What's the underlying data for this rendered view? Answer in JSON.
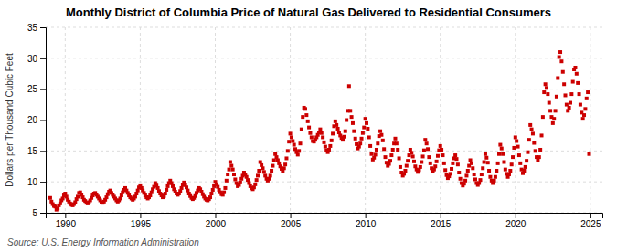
{
  "chart_data": {
    "type": "scatter",
    "title": "Monthly District of Columbia Price of Natural Gas Delivered to Residential Consumers",
    "y_label": "Dollars per Thousand Cubic Feet",
    "source": "Source: U.S. Energy Information Administration",
    "color": "#cc0000",
    "marker": "square",
    "grid": true,
    "xlim": [
      1988.7,
      2025.8
    ],
    "ylim": [
      5,
      35
    ],
    "xticks": [
      1990,
      1995,
      2000,
      2005,
      2010,
      2015,
      2020,
      2025
    ],
    "yticks": [
      5,
      10,
      15,
      20,
      25,
      30,
      35
    ],
    "x": [
      1989.0,
      1989.083,
      1989.167,
      1989.25,
      1989.333,
      1989.417,
      1989.5,
      1989.583,
      1989.667,
      1989.75,
      1989.833,
      1989.917,
      1990.0,
      1990.083,
      1990.167,
      1990.25,
      1990.333,
      1990.417,
      1990.5,
      1990.583,
      1990.667,
      1990.75,
      1990.833,
      1990.917,
      1991.0,
      1991.083,
      1991.167,
      1991.25,
      1991.333,
      1991.417,
      1991.5,
      1991.583,
      1991.667,
      1991.75,
      1991.833,
      1991.917,
      1992.0,
      1992.083,
      1992.167,
      1992.25,
      1992.333,
      1992.417,
      1992.5,
      1992.583,
      1992.667,
      1992.75,
      1992.833,
      1992.917,
      1993.0,
      1993.083,
      1993.167,
      1993.25,
      1993.333,
      1993.417,
      1993.5,
      1993.583,
      1993.667,
      1993.75,
      1993.833,
      1993.917,
      1994.0,
      1994.083,
      1994.167,
      1994.25,
      1994.333,
      1994.417,
      1994.5,
      1994.583,
      1994.667,
      1994.75,
      1994.833,
      1994.917,
      1995.0,
      1995.083,
      1995.167,
      1995.25,
      1995.333,
      1995.417,
      1995.5,
      1995.583,
      1995.667,
      1995.75,
      1995.833,
      1995.917,
      1996.0,
      1996.083,
      1996.167,
      1996.25,
      1996.333,
      1996.417,
      1996.5,
      1996.583,
      1996.667,
      1996.75,
      1996.833,
      1996.917,
      1997.0,
      1997.083,
      1997.167,
      1997.25,
      1997.333,
      1997.417,
      1997.5,
      1997.583,
      1997.667,
      1997.75,
      1997.833,
      1997.917,
      1998.0,
      1998.083,
      1998.167,
      1998.25,
      1998.333,
      1998.417,
      1998.5,
      1998.583,
      1998.667,
      1998.75,
      1998.833,
      1998.917,
      1999.0,
      1999.083,
      1999.167,
      1999.25,
      1999.333,
      1999.417,
      1999.5,
      1999.583,
      1999.667,
      1999.75,
      1999.833,
      1999.917,
      2000.0,
      2000.083,
      2000.167,
      2000.25,
      2000.333,
      2000.417,
      2000.5,
      2000.583,
      2000.667,
      2000.75,
      2000.833,
      2000.917,
      2001.0,
      2001.083,
      2001.167,
      2001.25,
      2001.333,
      2001.417,
      2001.5,
      2001.583,
      2001.667,
      2001.75,
      2001.833,
      2001.917,
      2002.0,
      2002.083,
      2002.167,
      2002.25,
      2002.333,
      2002.417,
      2002.5,
      2002.583,
      2002.667,
      2002.75,
      2002.833,
      2002.917,
      2003.0,
      2003.083,
      2003.167,
      2003.25,
      2003.333,
      2003.417,
      2003.5,
      2003.583,
      2003.667,
      2003.75,
      2003.833,
      2003.917,
      2004.0,
      2004.083,
      2004.167,
      2004.25,
      2004.333,
      2004.417,
      2004.5,
      2004.583,
      2004.667,
      2004.75,
      2004.833,
      2004.917,
      2005.0,
      2005.083,
      2005.167,
      2005.25,
      2005.333,
      2005.417,
      2005.5,
      2005.583,
      2005.667,
      2005.75,
      2005.833,
      2005.917,
      2006.0,
      2006.083,
      2006.167,
      2006.25,
      2006.333,
      2006.417,
      2006.5,
      2006.583,
      2006.667,
      2006.75,
      2006.833,
      2006.917,
      2007.0,
      2007.083,
      2007.167,
      2007.25,
      2007.333,
      2007.417,
      2007.5,
      2007.583,
      2007.667,
      2007.75,
      2007.833,
      2007.917,
      2008.0,
      2008.083,
      2008.167,
      2008.25,
      2008.333,
      2008.417,
      2008.5,
      2008.583,
      2008.667,
      2008.75,
      2008.833,
      2008.917,
      2009.0,
      2009.083,
      2009.167,
      2009.25,
      2009.333,
      2009.417,
      2009.5,
      2009.583,
      2009.667,
      2009.75,
      2009.833,
      2009.917,
      2010.0,
      2010.083,
      2010.167,
      2010.25,
      2010.333,
      2010.417,
      2010.5,
      2010.583,
      2010.667,
      2010.75,
      2010.833,
      2010.917,
      2011.0,
      2011.083,
      2011.167,
      2011.25,
      2011.333,
      2011.417,
      2011.5,
      2011.583,
      2011.667,
      2011.75,
      2011.833,
      2011.917,
      2012.0,
      2012.083,
      2012.167,
      2012.25,
      2012.333,
      2012.417,
      2012.5,
      2012.583,
      2012.667,
      2012.75,
      2012.833,
      2012.917,
      2013.0,
      2013.083,
      2013.167,
      2013.25,
      2013.333,
      2013.417,
      2013.5,
      2013.583,
      2013.667,
      2013.75,
      2013.833,
      2013.917,
      2014.0,
      2014.083,
      2014.167,
      2014.25,
      2014.333,
      2014.417,
      2014.5,
      2014.583,
      2014.667,
      2014.75,
      2014.833,
      2014.917,
      2015.0,
      2015.083,
      2015.167,
      2015.25,
      2015.333,
      2015.417,
      2015.5,
      2015.583,
      2015.667,
      2015.75,
      2015.833,
      2015.917,
      2016.0,
      2016.083,
      2016.167,
      2016.25,
      2016.333,
      2016.417,
      2016.5,
      2016.583,
      2016.667,
      2016.75,
      2016.833,
      2016.917,
      2017.0,
      2017.083,
      2017.167,
      2017.25,
      2017.333,
      2017.417,
      2017.5,
      2017.583,
      2017.667,
      2017.75,
      2017.833,
      2017.917,
      2018.0,
      2018.083,
      2018.167,
      2018.25,
      2018.333,
      2018.417,
      2018.5,
      2018.583,
      2018.667,
      2018.75,
      2018.833,
      2018.917,
      2019.0,
      2019.083,
      2019.167,
      2019.25,
      2019.333,
      2019.417,
      2019.5,
      2019.583,
      2019.667,
      2019.75,
      2019.833,
      2019.917,
      2020.0,
      2020.083,
      2020.167,
      2020.25,
      2020.333,
      2020.417,
      2020.5,
      2020.583,
      2020.667,
      2020.75,
      2020.833,
      2020.917,
      2021.0,
      2021.083,
      2021.167,
      2021.25,
      2021.333,
      2021.417,
      2021.5,
      2021.583,
      2021.667,
      2021.75,
      2021.833,
      2021.917,
      2022.0,
      2022.083,
      2022.167,
      2022.25,
      2022.333,
      2022.417,
      2022.5,
      2022.583,
      2022.667,
      2022.75,
      2022.833,
      2022.917,
      2023.0,
      2023.083,
      2023.167,
      2023.25,
      2023.333,
      2023.417,
      2023.5,
      2023.583,
      2023.667,
      2023.75,
      2023.833,
      2023.917,
      2024.0,
      2024.083,
      2024.167,
      2024.25,
      2024.333,
      2024.417,
      2024.5,
      2024.583,
      2024.667,
      2024.75,
      2024.833,
      2024.917
    ],
    "values": [
      7.4,
      6.8,
      6.4,
      6.1,
      6.0,
      5.5,
      5.7,
      6.2,
      6.5,
      7.0,
      7.3,
      7.8,
      8.1,
      7.6,
      7.1,
      6.8,
      6.5,
      6.3,
      6.2,
      6.4,
      6.7,
      7.2,
      7.6,
      8.2,
      8.3,
      7.9,
      7.5,
      7.1,
      6.9,
      6.6,
      6.5,
      6.7,
      7.0,
      7.4,
      7.8,
      8.1,
      8.2,
      7.9,
      7.6,
      7.3,
      7.0,
      6.7,
      6.6,
      6.8,
      7.1,
      7.5,
      8.0,
      8.4,
      8.6,
      8.2,
      7.9,
      7.6,
      7.3,
      7.0,
      6.8,
      7.0,
      7.3,
      7.8,
      8.3,
      8.7,
      9.0,
      8.6,
      8.2,
      7.8,
      7.5,
      7.3,
      7.1,
      7.3,
      7.6,
      8.1,
      8.6,
      9.1,
      9.3,
      9.0,
      8.6,
      8.2,
      7.8,
      7.5,
      7.3,
      7.5,
      7.8,
      8.3,
      8.8,
      9.2,
      9.8,
      9.4,
      9.0,
      8.5,
      8.1,
      7.8,
      7.5,
      7.7,
      8.1,
      8.7,
      9.3,
      9.8,
      10.2,
      9.8,
      9.3,
      8.8,
      8.4,
      8.1,
      7.9,
      8.1,
      8.5,
      9.0,
      9.5,
      9.9,
      9.5,
      9.1,
      8.6,
      8.1,
      7.7,
      7.4,
      7.2,
      7.4,
      7.7,
      8.2,
      8.6,
      9.0,
      8.8,
      8.4,
      8.0,
      7.6,
      7.3,
      7.1,
      7.0,
      7.2,
      7.5,
      8.1,
      8.7,
      9.3,
      10.0,
      9.6,
      9.2,
      8.7,
      8.3,
      8.0,
      7.9,
      8.3,
      9.0,
      10.2,
      11.2,
      12.0,
      13.2,
      12.6,
      12.0,
      11.2,
      10.4,
      9.8,
      9.3,
      9.5,
      9.9,
      10.5,
      11.0,
      11.5,
      11.2,
      10.8,
      10.3,
      9.8,
      9.3,
      9.0,
      8.8,
      9.1,
      9.6,
      10.3,
      11.0,
      11.8,
      13.2,
      12.7,
      12.2,
      11.6,
      11.0,
      10.5,
      10.2,
      10.5,
      11.0,
      11.8,
      12.6,
      13.5,
      14.5,
      14.0,
      13.5,
      13.0,
      12.5,
      12.1,
      11.8,
      12.2,
      12.8,
      13.8,
      15.0,
      16.5,
      17.8,
      17.2,
      16.6,
      16.0,
      15.3,
      14.8,
      14.4,
      15.0,
      16.2,
      18.5,
      20.5,
      22.0,
      21.8,
      20.8,
      19.8,
      18.8,
      17.9,
      17.2,
      16.6,
      16.5,
      16.8,
      17.2,
      17.6,
      18.0,
      18.5,
      17.9,
      17.2,
      16.4,
      15.7,
      15.1,
      14.8,
      15.2,
      15.8,
      16.7,
      17.8,
      19.0,
      19.8,
      19.2,
      18.6,
      18.0,
      17.5,
      17.1,
      16.8,
      17.3,
      18.2,
      20.0,
      21.5,
      25.5,
      21.5,
      20.5,
      19.5,
      18.2,
      17.0,
      16.1,
      15.4,
      15.7,
      16.2,
      17.0,
      17.9,
      18.8,
      20.2,
      19.5,
      18.6,
      17.2,
      15.8,
      14.5,
      13.6,
      13.9,
      14.4,
      15.2,
      16.2,
      17.4,
      18.2,
      17.6,
      16.7,
      15.3,
      14.0,
      13.1,
      12.6,
      12.9,
      13.4,
      14.3,
      15.2,
      16.2,
      17.0,
      16.2,
      15.2,
      13.8,
      12.4,
      11.5,
      11.0,
      11.3,
      11.8,
      12.6,
      13.4,
      14.3,
      15.2,
      14.7,
      14.1,
      13.3,
      12.5,
      12.0,
      11.6,
      11.9,
      12.4,
      13.2,
      14.1,
      15.1,
      16.8,
      16.2,
      15.3,
      14.0,
      13.0,
      12.2,
      11.7,
      12.0,
      12.5,
      13.3,
      14.2,
      15.1,
      15.8,
      15.2,
      14.3,
      13.0,
      11.9,
      11.1,
      10.6,
      10.9,
      11.3,
      12.1,
      13.0,
      13.8,
      14.3,
      13.7,
      12.8,
      11.5,
      10.5,
      9.8,
      9.4,
      9.7,
      10.2,
      11.0,
      11.8,
      12.6,
      13.5,
      13.0,
      12.2,
      11.2,
      10.4,
      9.8,
      9.5,
      9.8,
      10.3,
      11.2,
      12.2,
      13.2,
      14.5,
      13.9,
      13.1,
      11.8,
      10.8,
      10.2,
      9.8,
      10.2,
      10.8,
      11.8,
      13.0,
      14.5,
      16.0,
      15.4,
      14.5,
      13.2,
      12.0,
      11.3,
      10.8,
      11.2,
      11.8,
      12.8,
      14.0,
      15.5,
      17.2,
      16.6,
      15.7,
      14.3,
      13.0,
      12.0,
      11.4,
      11.8,
      12.4,
      13.4,
      14.8,
      16.8,
      19.2,
      18.5,
      17.8,
      16.3,
      15.0,
      14.0,
      13.5,
      14.0,
      15.2,
      17.5,
      20.5,
      24.5,
      25.8,
      25.2,
      24.2,
      22.8,
      21.5,
      20.5,
      19.5,
      20.2,
      21.5,
      23.8,
      26.8,
      30.2,
      31.0,
      29.5,
      27.8,
      25.8,
      24.0,
      22.5,
      21.5,
      22.0,
      22.8,
      24.2,
      26.2,
      28.2,
      28.5,
      27.5,
      26.0,
      24.2,
      22.5,
      21.2,
      20.2,
      20.8,
      21.8,
      23.5,
      24.5,
      14.5
    ]
  }
}
